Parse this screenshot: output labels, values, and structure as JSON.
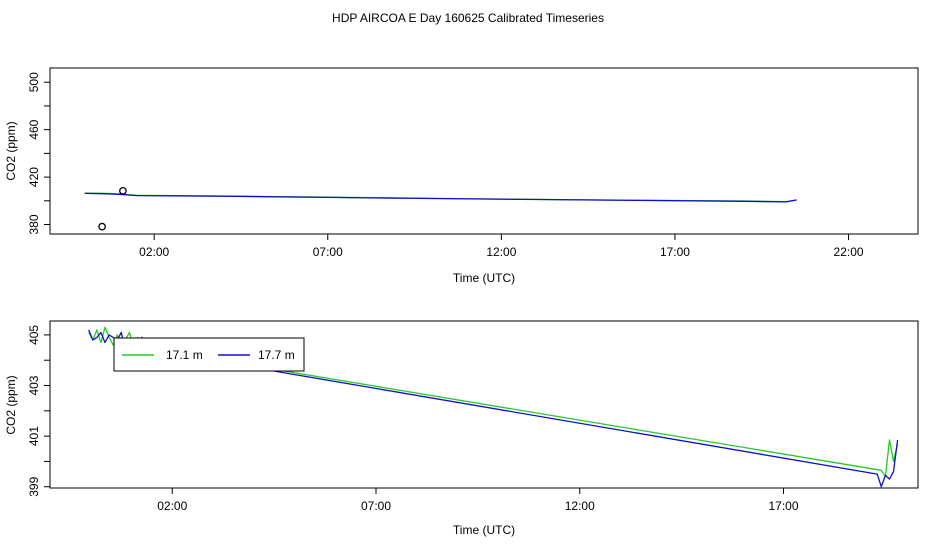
{
  "title": "HDP AIRCOA E  Day 160625  Calibrated Timeseries",
  "colors": {
    "green": "#22cc22",
    "blue": "#1010cc",
    "frame": "#000000"
  },
  "chart_data": [
    {
      "type": "line",
      "xlabel": "Time (UTC)",
      "ylabel": "CO2 (ppm)",
      "xlim": [
        -1.0,
        24.0
      ],
      "ylim": [
        372.0,
        512.0
      ],
      "xticks": [
        {
          "v": 2,
          "label": "02:00"
        },
        {
          "v": 7,
          "label": "07:00"
        },
        {
          "v": 12,
          "label": "12:00"
        },
        {
          "v": 17,
          "label": "17:00"
        },
        {
          "v": 22,
          "label": "22:00"
        }
      ],
      "yticks": [
        {
          "v": 380,
          "label": "380"
        },
        {
          "v": 420,
          "label": "420"
        },
        {
          "v": 460,
          "label": "460"
        },
        {
          "v": 500,
          "label": "500"
        }
      ],
      "yminor": [
        400,
        440,
        480
      ],
      "series": [
        {
          "color": "green",
          "x": [
            0.0,
            0.5,
            1.0,
            1.5,
            4.0,
            7.0,
            10.0,
            13.0,
            16.0,
            19.0,
            20.2,
            20.5
          ],
          "y": [
            406.4,
            406.3,
            405.8,
            404.6,
            404.0,
            403.0,
            402.0,
            401.2,
            400.4,
            399.8,
            399.3,
            400.5
          ]
        },
        {
          "color": "blue",
          "x": [
            0.0,
            0.5,
            1.0,
            1.5,
            4.0,
            7.0,
            10.0,
            13.0,
            16.0,
            19.0,
            20.2,
            20.5
          ],
          "y": [
            406.2,
            406.0,
            405.5,
            404.4,
            403.9,
            402.9,
            401.9,
            401.1,
            400.3,
            399.6,
            399.1,
            400.8
          ]
        }
      ],
      "points": [
        {
          "x": 0.5,
          "y": 378.2
        },
        {
          "x": 1.1,
          "y": 408.4
        }
      ]
    },
    {
      "type": "line",
      "xlabel": "Time (UTC)",
      "ylabel": "CO2 (ppm)",
      "xlim": [
        -1.0,
        20.3
      ],
      "ylim": [
        398.95,
        405.55
      ],
      "xticks": [
        {
          "v": 2,
          "label": "02:00"
        },
        {
          "v": 7,
          "label": "07:00"
        },
        {
          "v": 12,
          "label": "12:00"
        },
        {
          "v": 17,
          "label": "17:00"
        }
      ],
      "yticks": [
        {
          "v": 399,
          "label": "399"
        },
        {
          "v": 401,
          "label": "401"
        },
        {
          "v": 403,
          "label": "403"
        },
        {
          "v": 405,
          "label": "405"
        }
      ],
      "yminor": [
        400,
        402,
        404
      ],
      "legend": [
        {
          "label": "17.1 m",
          "color": "green"
        },
        {
          "label": "17.7 m",
          "color": "blue"
        }
      ],
      "series": [
        {
          "color": "green",
          "x": [
            -0.05,
            0.05,
            0.15,
            0.25,
            0.35,
            0.45,
            0.55,
            0.65,
            0.75,
            0.85,
            0.95,
            1.05,
            1.15,
            1.25,
            1.35,
            1.45,
            1.55,
            1.65,
            1.75,
            1.85,
            19.4,
            19.5,
            19.6,
            19.7,
            19.8
          ],
          "y": [
            405.1,
            404.8,
            405.2,
            404.7,
            405.3,
            404.9,
            404.6,
            405.0,
            404.4,
            404.8,
            405.1,
            404.5,
            404.9,
            404.3,
            404.7,
            404.4,
            404.6,
            404.35,
            404.5,
            404.35,
            399.65,
            399.4,
            400.85,
            400.0,
            400.7
          ]
        },
        {
          "color": "blue",
          "x": [
            -0.05,
            0.05,
            0.15,
            0.25,
            0.35,
            0.45,
            0.55,
            0.65,
            0.75,
            0.85,
            0.95,
            1.05,
            1.15,
            1.25,
            1.35,
            1.45,
            1.55,
            1.65,
            1.75,
            1.85,
            19.3,
            19.4,
            19.5,
            19.6,
            19.7,
            19.8
          ],
          "y": [
            405.2,
            404.8,
            404.9,
            405.1,
            404.7,
            405.0,
            404.9,
            404.8,
            405.1,
            404.3,
            404.2,
            404.3,
            404.2,
            404.9,
            404.5,
            404.6,
            404.45,
            404.4,
            404.4,
            404.3,
            399.5,
            399.0,
            399.45,
            399.3,
            399.6,
            400.85
          ]
        }
      ]
    }
  ]
}
